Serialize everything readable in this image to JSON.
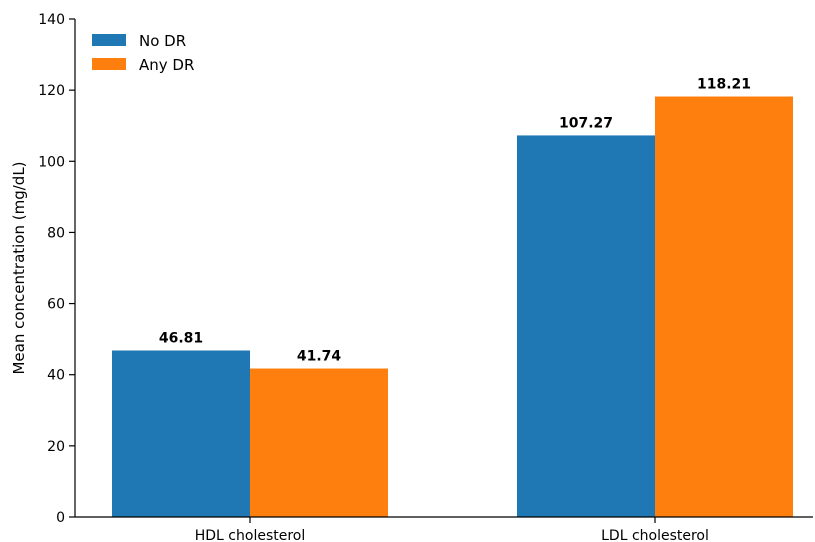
{
  "chart_data": {
    "type": "bar",
    "title": "",
    "xlabel": "",
    "ylabel": "Mean concentration (mg/dL)",
    "categories": [
      "HDL cholesterol",
      "LDL cholesterol"
    ],
    "series": [
      {
        "name": "No DR",
        "color": "#1f77b4",
        "values": [
          46.81,
          107.27
        ],
        "value_labels": [
          "46.81",
          "107.27"
        ]
      },
      {
        "name": "Any DR",
        "color": "#ff7f0e",
        "values": [
          41.74,
          118.21
        ],
        "value_labels": [
          "41.74",
          "118.21"
        ]
      }
    ],
    "ylim": [
      0,
      140
    ],
    "yticks": [
      0,
      20,
      40,
      60,
      80,
      100,
      120,
      140
    ],
    "ytick_labels": [
      "0",
      "20",
      "40",
      "60",
      "80",
      "100",
      "120",
      "140"
    ],
    "grid": false,
    "legend_position": "top-left"
  }
}
